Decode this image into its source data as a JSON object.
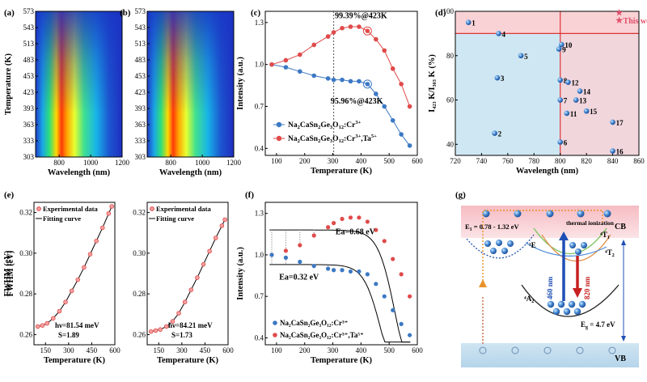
{
  "colors": {
    "blue": "#3b78c4",
    "red": "#e04a4a",
    "axis": "#000000",
    "pink_bg": "#f9d2d6",
    "blue_bg": "#cfe7f3",
    "star": "#e0506a",
    "vb": "#b8d6ea",
    "cb": "#f6c4c8"
  },
  "chart_data": [
    {
      "panel": "(a)",
      "type": "heatmap",
      "xlabel": "Wavelength (nm)",
      "ylabel": "Temperature (K)",
      "xlim": [
        650,
        1200
      ],
      "ylim": [
        303,
        573
      ],
      "xticks": [
        "800",
        "1000",
        "1200"
      ],
      "yticks": [
        "303",
        "333",
        "363",
        "393",
        "423",
        "453",
        "483",
        "513",
        "543",
        "573"
      ],
      "peak_center_nm": 840
    },
    {
      "panel": "(b)",
      "type": "heatmap",
      "xlabel": "Wavelength (nm)",
      "ylabel": "Temperature (K)",
      "xlim": [
        650,
        1200
      ],
      "ylim": [
        303,
        573
      ],
      "xticks": [
        "800",
        "1000",
        "1200"
      ],
      "yticks": [
        "303",
        "333",
        "363",
        "393",
        "423",
        "453",
        "483",
        "513",
        "543",
        "573"
      ],
      "peak_center_nm": 840
    },
    {
      "panel": "(c)",
      "type": "line",
      "xlabel": "Temperature (K)",
      "ylabel": "Intensity (a.u.)",
      "xlim": [
        60,
        600
      ],
      "ylim": [
        0.35,
        1.38
      ],
      "xticks": [
        "100",
        "200",
        "300",
        "400",
        "500",
        "600"
      ],
      "yticks": [
        "0.4",
        "0.7",
        "1.0",
        "1.3"
      ],
      "vline_x": 303,
      "series": [
        {
          "name": "Na₂CaSn₂Ge₃O₁₂:Cr³⁺",
          "color": "blue",
          "x": [
            83,
            133,
            183,
            233,
            283,
            303,
            333,
            363,
            393,
            423,
            453,
            483,
            513,
            543,
            573
          ],
          "y": [
            1.0,
            0.98,
            0.95,
            0.92,
            0.9,
            0.89,
            0.89,
            0.88,
            0.88,
            0.86,
            0.79,
            0.7,
            0.6,
            0.5,
            0.42
          ]
        },
        {
          "name": "Na₂CaSn₂Ge₃O₁₂:Cr³⁺,Ta⁵⁺",
          "color": "red",
          "x": [
            83,
            133,
            183,
            233,
            283,
            303,
            333,
            363,
            393,
            423,
            453,
            483,
            513,
            543,
            573
          ],
          "y": [
            1.0,
            1.03,
            1.07,
            1.14,
            1.2,
            1.23,
            1.26,
            1.27,
            1.27,
            1.24,
            1.18,
            1.1,
            0.97,
            0.86,
            0.7
          ]
        }
      ],
      "annotations": [
        "99.39%@423K",
        "95.96%@423K"
      ]
    },
    {
      "panel": "(d)",
      "type": "scatter",
      "xlabel": "Wavelength (nm)",
      "ylabel": "I₄₂₃ K/I₃₀₃ K (%)",
      "xlim": [
        720,
        860
      ],
      "ylim": [
        35,
        100
      ],
      "xticks": [
        "720",
        "740",
        "760",
        "780",
        "800",
        "820",
        "840",
        "860"
      ],
      "yticks": [
        "40",
        "60",
        "80",
        "100"
      ],
      "hline_y": 90,
      "vline_x": 800,
      "points": [
        {
          "label": "1",
          "x": 730,
          "y": 95
        },
        {
          "label": "2",
          "x": 750,
          "y": 45
        },
        {
          "label": "3",
          "x": 752,
          "y": 70
        },
        {
          "label": "4",
          "x": 753,
          "y": 90
        },
        {
          "label": "5",
          "x": 770,
          "y": 80
        },
        {
          "label": "6",
          "x": 800,
          "y": 41
        },
        {
          "label": "7",
          "x": 800,
          "y": 60
        },
        {
          "label": "8",
          "x": 800,
          "y": 69
        },
        {
          "label": "9",
          "x": 799,
          "y": 83
        },
        {
          "label": "10",
          "x": 801,
          "y": 85
        },
        {
          "label": "11",
          "x": 805,
          "y": 54
        },
        {
          "label": "12",
          "x": 806,
          "y": 68
        },
        {
          "label": "13",
          "x": 812,
          "y": 60
        },
        {
          "label": "14",
          "x": 815,
          "y": 64
        },
        {
          "label": "15",
          "x": 820,
          "y": 55
        },
        {
          "label": "16",
          "x": 840,
          "y": 37
        },
        {
          "label": "17",
          "x": 840,
          "y": 50
        }
      ],
      "this_work_label": "This work",
      "this_work_points": [
        {
          "x": 845,
          "y": 99.4
        },
        {
          "x": 845,
          "y": 96.0
        }
      ]
    },
    {
      "panel": "(e)",
      "type": "scatter",
      "xlabel": "Temperature (K)",
      "ylabel": "FWHM (eV)",
      "xlim": [
        75,
        600
      ],
      "ylim": [
        0.255,
        0.325
      ],
      "xticks": [
        "150",
        "300",
        "450",
        "600"
      ],
      "yticks": [
        "0.26",
        "0.28",
        "0.30",
        "0.32"
      ],
      "legend": [
        "Experimental data",
        "Fitting curve"
      ],
      "fit": "hν=81.54 meV",
      "fit_s": "S=1.89",
      "x": [
        100,
        130,
        160,
        200,
        240,
        280,
        320,
        360,
        400,
        440,
        480,
        520,
        560,
        580
      ],
      "y": [
        0.264,
        0.2645,
        0.2655,
        0.268,
        0.2715,
        0.276,
        0.2815,
        0.287,
        0.293,
        0.2995,
        0.306,
        0.3125,
        0.3195,
        0.323
      ]
    },
    {
      "panel": "(e2)",
      "type": "scatter",
      "xlabel": "Temperature (K)",
      "ylabel": "",
      "xlim": [
        75,
        600
      ],
      "ylim": [
        0.255,
        0.325
      ],
      "xticks": [
        "150",
        "300",
        "450",
        "600"
      ],
      "yticks": [
        "0.26",
        "0.28",
        "0.30",
        "0.32"
      ],
      "legend": [
        "Experimental data",
        "Fitting curve"
      ],
      "fit": "hν=84.21 meV",
      "fit_s": "S=1.73",
      "x": [
        100,
        130,
        160,
        200,
        240,
        280,
        320,
        360,
        400,
        440,
        480,
        520,
        560,
        580
      ],
      "y": [
        0.2615,
        0.262,
        0.2625,
        0.264,
        0.2665,
        0.2705,
        0.276,
        0.282,
        0.288,
        0.2945,
        0.301,
        0.3075,
        0.3135,
        0.3165
      ]
    },
    {
      "panel": "(f)",
      "type": "scatter",
      "xlabel": "Temperature (K)",
      "ylabel": "Intensity (a.u.)",
      "xlim": [
        60,
        600
      ],
      "ylim": [
        0.35,
        1.38
      ],
      "xticks": [
        "100",
        "200",
        "300",
        "400",
        "500",
        "600"
      ],
      "yticks": [
        "0.4",
        "0.7",
        "1.0",
        "1.3"
      ],
      "annotations": [
        "Ea=0.68 eV",
        "Ea=0.32 eV"
      ],
      "legend": [
        "Na₂CaSn₂Ge₃O₁₂:Cr³⁺",
        "Na₂CaSn₂Ge₃O₁₂:Cr³⁺,Ta⁵⁺"
      ],
      "series": [
        {
          "name": "Na₂CaSn₂Ge₃O₁₂:Cr³⁺",
          "color": "blue",
          "x": [
            83,
            133,
            183,
            233,
            283,
            303,
            333,
            363,
            393,
            423,
            453,
            483,
            513,
            543,
            573
          ],
          "y": [
            1.0,
            0.98,
            0.95,
            0.92,
            0.9,
            0.89,
            0.89,
            0.88,
            0.88,
            0.86,
            0.79,
            0.7,
            0.6,
            0.5,
            0.42
          ]
        },
        {
          "name": "Na₂CaSn₂Ge₃O₁₂:Cr³⁺,Ta⁵⁺",
          "color": "red",
          "x": [
            83,
            133,
            183,
            233,
            283,
            303,
            333,
            363,
            393,
            423,
            453,
            483,
            513,
            543,
            573
          ],
          "y": [
            1.0,
            1.03,
            1.07,
            1.14,
            1.2,
            1.23,
            1.26,
            1.27,
            1.27,
            1.24,
            1.18,
            1.1,
            0.97,
            0.86,
            0.7
          ]
        }
      ]
    }
  ],
  "panels": {
    "a": "(a)",
    "b": "(b)",
    "c": "(c)",
    "d": "(d)",
    "e": "(e)",
    "f": "(f)",
    "g": "(g)"
  },
  "legend_c": {
    "s1_main": "Na",
    "s1_2": "2",
    "s1_b": "CaSn",
    "s1_3": "2",
    "s1_c": "Ge",
    "s1_4": "3",
    "s1_d": "O",
    "s1_5": "12",
    "s1_e": ":Cr",
    "s1_6": "3+",
    "s2_tail": ",Ta",
    "s2_sup": "5+"
  },
  "diagram": {
    "cb": "CB",
    "vb": "VB",
    "e1": "E",
    "e1_sub": "1",
    "e1_val": " = 0.78 - 1.32 eV",
    "thermal": "thermal ionization",
    "state_2e": "²E",
    "state_4t1": "⁴T",
    "state_4t1_sub": "1",
    "state_4t2": "⁴T",
    "state_4t2_sub": "2",
    "state_4a2": "⁴A",
    "state_4a2_sub": "2",
    "abs": "460 nm",
    "em": "820 nm",
    "eg": "E",
    "eg_sub": "g",
    "eg_val": " = 4.7 eV"
  }
}
